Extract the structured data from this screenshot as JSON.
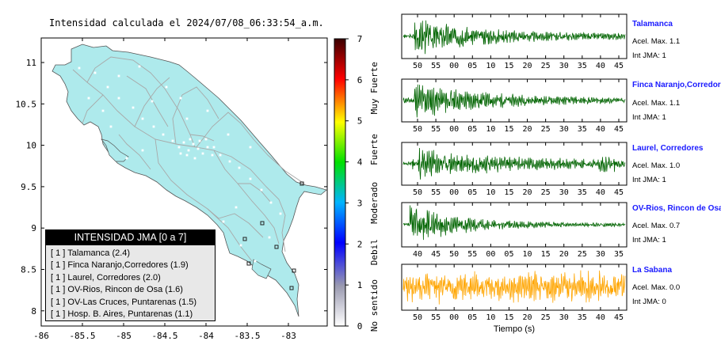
{
  "title": "Intensidad calculada el 2024/07/08_06:33:54_a.m.",
  "colorbar": {
    "ticks": [
      "0",
      "1",
      "2",
      "3",
      "4",
      "5",
      "6",
      "7"
    ],
    "categories": [
      "No sentido",
      "Debil",
      "Moderado",
      "Fuerte",
      "Muy Fuerte"
    ]
  },
  "legend": {
    "title": "INTENSIDAD JMA [0 a 7]",
    "items": [
      "[ 1 ]  Talamanca (2.4)",
      "[ 1 ]  Finca Naranjo,Corredores (1.9)",
      "[ 1 ]  Laurel, Corredores (2.0)",
      "[ 1 ]  OV-Rios, Rincon de Osa (1.6)",
      "[ 1 ]  OV-Las Cruces, Puntarenas (1.5)",
      "[ 1 ]  Hosp. B. Aires, Puntarenas (1.1)"
    ]
  },
  "map": {
    "xticks": [
      "-86",
      "-85.5",
      "-85",
      "-84.5",
      "-84",
      "-83.5",
      "-83"
    ],
    "yticks": [
      "11",
      "10.5",
      "10",
      "9.5",
      "9",
      "8.5",
      "8"
    ],
    "land_color": "#aeeaec",
    "road_color": "#a8a8a8"
  },
  "chart_data": [
    {
      "type": "line",
      "name": "Talamanca",
      "stats": [
        "Acel. Max. 1.1",
        "Int JMA: 1"
      ],
      "color": "#006400",
      "xticks": [
        "50",
        "55",
        "00",
        "05",
        "10",
        "15",
        "20",
        "25",
        "30",
        "35",
        "40",
        "45"
      ]
    },
    {
      "type": "line",
      "name": "Finca Naranjo,Corredores",
      "stats": [
        "Acel. Max. 1.1",
        "Int JMA: 1"
      ],
      "color": "#006400",
      "xticks": [
        "50",
        "55",
        "00",
        "05",
        "10",
        "15",
        "20",
        "25",
        "30",
        "35",
        "40",
        "45"
      ]
    },
    {
      "type": "line",
      "name": "Laurel, Corredores",
      "stats": [
        "Acel. Max. 1.0",
        "Int JMA: 1"
      ],
      "color": "#006400",
      "xticks": [
        "50",
        "55",
        "00",
        "05",
        "10",
        "15",
        "20",
        "25",
        "30",
        "35",
        "40",
        "45"
      ]
    },
    {
      "type": "line",
      "name": "OV-Rios, Rincon de Osa",
      "stats": [
        "Acel. Max. 0.7",
        "Int JMA: 1"
      ],
      "color": "#006400",
      "xticks": [
        "40",
        "45",
        "50",
        "55",
        "00",
        "05",
        "10",
        "15",
        "20",
        "25",
        "30",
        "35"
      ]
    },
    {
      "type": "line",
      "name": "La Sabana",
      "stats": [
        "Acel. Max. 0.0",
        "Int JMA: 0"
      ],
      "color": "#ffa500",
      "xticks": [
        "50",
        "55",
        "00",
        "05",
        "10",
        "15",
        "20",
        "25",
        "30",
        "35",
        "40",
        "45"
      ],
      "xlabel": "Tiempo (s)"
    }
  ]
}
